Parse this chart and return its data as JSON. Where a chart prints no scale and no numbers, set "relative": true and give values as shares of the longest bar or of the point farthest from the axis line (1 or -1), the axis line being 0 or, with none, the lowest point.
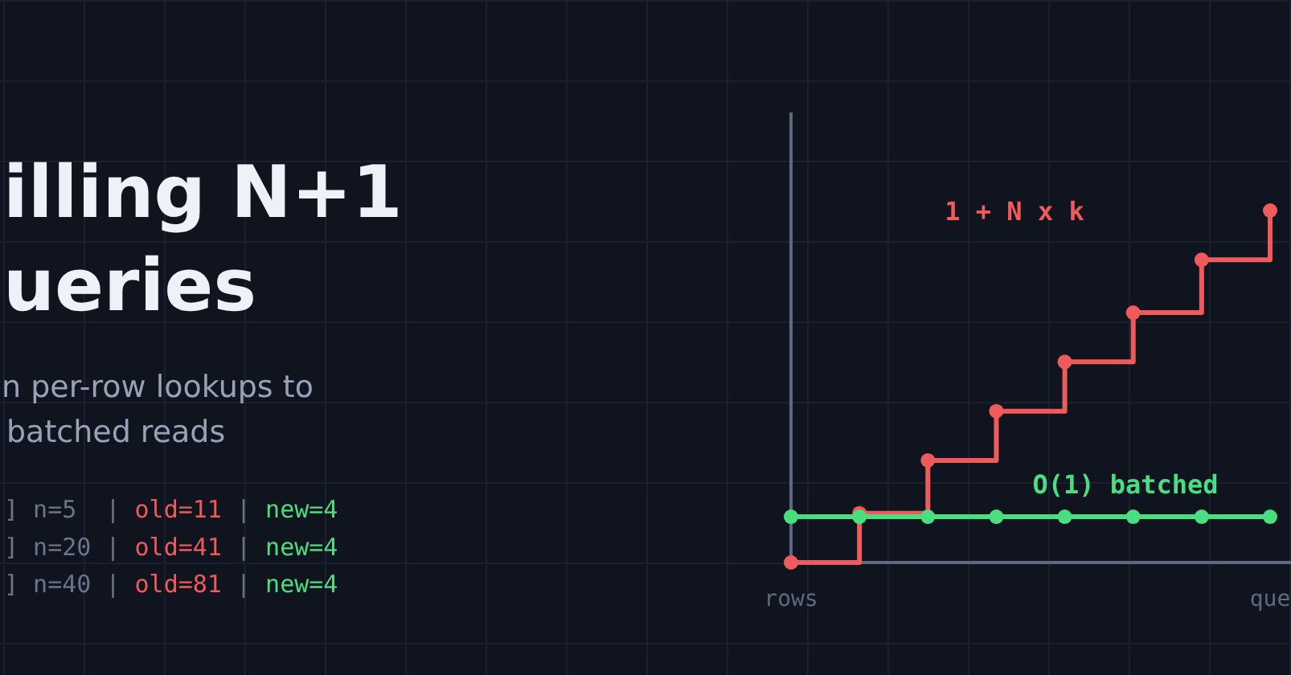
{
  "chart_data": {
    "type": "step",
    "title": "illing N+1\nueries",
    "subtitle": "n per-row lookups to\nbatched reads",
    "annotations": [
      "] n=5  | old=11 | new=4",
      "] n=20 | old=41 | new=4",
      "] n=40 | old=81 | new=4"
    ],
    "categories": [
      "rows",
      null,
      null,
      null,
      null,
      null,
      null,
      "que"
    ],
    "relative": true,
    "marker": "circle",
    "line_style": "solid",
    "series": [
      {
        "name": "1 + N x k",
        "color": "#ef5b5b",
        "values": [
          0,
          0.14,
          0.29,
          0.43,
          0.57,
          0.71,
          0.86,
          1
        ]
      },
      {
        "name": "O(1) batched",
        "color": "#4ade80",
        "values": [
          0.13,
          0.13,
          0.13,
          0.13,
          0.13,
          0.13,
          0.13,
          0.13
        ]
      }
    ]
  }
}
